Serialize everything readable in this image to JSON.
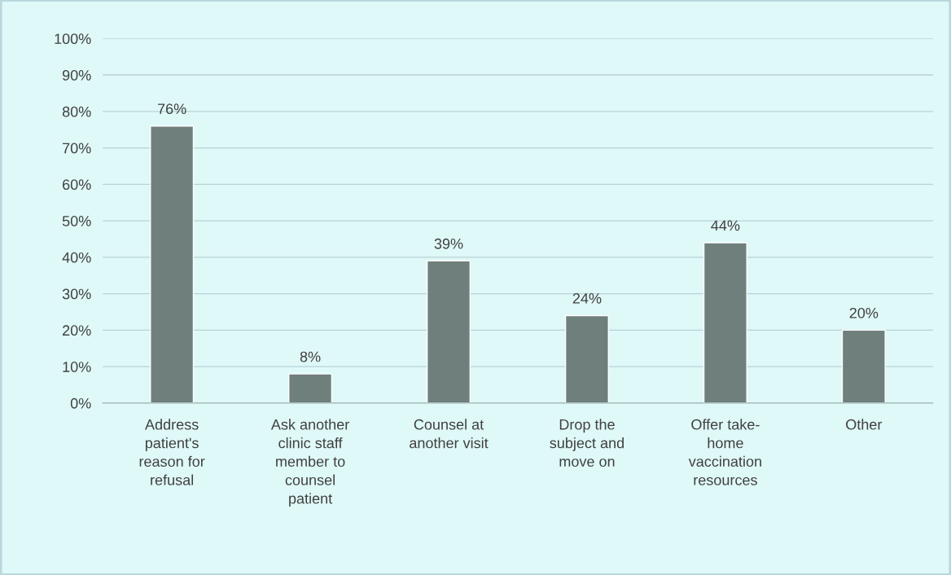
{
  "chart_data": {
    "type": "bar",
    "categories": [
      "Address patient's reason for refusal",
      "Ask another clinic staff member to counsel patient",
      "Counsel at another visit",
      "Drop the subject and move on",
      "Offer take-home vaccination resources",
      "Other"
    ],
    "values": [
      76,
      8,
      39,
      24,
      44,
      20
    ],
    "value_labels": [
      "76%",
      "8%",
      "39%",
      "24%",
      "44%",
      "20%"
    ],
    "color": "#6f7f7c",
    "ylim": [
      0,
      100
    ],
    "yticks": [
      {
        "value": 0,
        "label": "0%"
      },
      {
        "value": 10,
        "label": "10%"
      },
      {
        "value": 20,
        "label": "20%"
      },
      {
        "value": 30,
        "label": "30%"
      },
      {
        "value": 40,
        "label": "40%"
      },
      {
        "value": 50,
        "label": "50%"
      },
      {
        "value": 60,
        "label": "60%"
      },
      {
        "value": 70,
        "label": "70%"
      },
      {
        "value": 80,
        "label": "80%"
      },
      {
        "value": 90,
        "label": "90%"
      },
      {
        "value": 100,
        "label": "100%"
      }
    ],
    "grid": "y"
  }
}
